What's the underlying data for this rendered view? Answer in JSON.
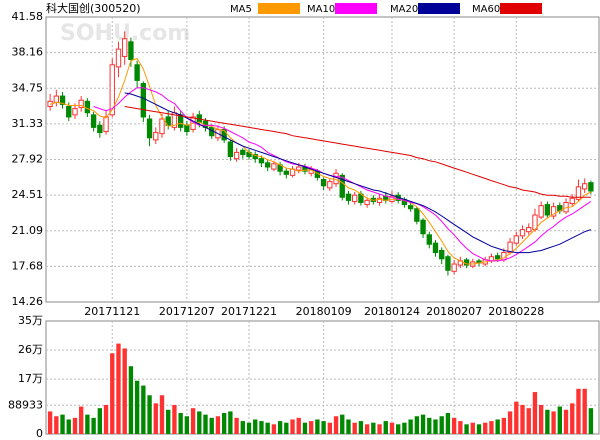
{
  "chart_data": {
    "type": "candlestick",
    "title": "科大国创(300520)",
    "watermark": "SOHU.com",
    "categories": [
      null,
      null,
      null,
      null,
      null,
      null,
      null,
      null,
      null,
      null,
      "20171121",
      null,
      null,
      null,
      null,
      null,
      null,
      null,
      null,
      null,
      null,
      null,
      "20171207",
      null,
      null,
      null,
      null,
      null,
      null,
      null,
      null,
      null,
      "20171221",
      null,
      null,
      null,
      null,
      null,
      null,
      null,
      null,
      null,
      null,
      null,
      "20180109",
      null,
      null,
      null,
      null,
      null,
      null,
      null,
      null,
      null,
      null,
      "20180124",
      null,
      null,
      null,
      null,
      null,
      null,
      null,
      null,
      null,
      "20180207",
      null,
      null,
      null,
      null,
      null,
      null,
      null,
      null,
      null,
      "20180228",
      null,
      null,
      null,
      null,
      null,
      null,
      null,
      null,
      null,
      null,
      null,
      null
    ],
    "open": [
      33.0,
      33.4,
      34.0,
      33.0,
      32.2,
      32.9,
      33.5,
      32.2,
      31.2,
      30.6,
      32.2,
      36.8,
      37.8,
      39.2,
      37.0,
      35.2,
      31.8,
      29.8,
      30.4,
      32.0,
      31.0,
      32.2,
      31.2,
      30.8,
      32.2,
      31.6,
      31.0,
      30.0,
      30.8,
      29.6,
      28.0,
      28.8,
      28.6,
      28.4,
      28.0,
      27.6,
      27.0,
      27.4,
      26.8,
      26.4,
      26.9,
      27.2,
      26.6,
      26.8,
      26.0,
      25.2,
      25.6,
      26.4,
      24.6,
      23.9,
      24.6,
      23.6,
      24.2,
      23.8,
      24.4,
      23.9,
      24.5,
      24.1,
      23.5,
      23.2,
      22.1,
      20.7,
      19.9,
      19.2,
      18.6,
      17.2,
      17.8,
      18.3,
      17.7,
      18.2,
      17.9,
      18.2,
      18.7,
      18.3,
      19.0,
      19.9,
      20.6,
      21.0,
      21.2,
      22.4,
      23.6,
      22.5,
      23.5,
      22.9,
      23.7,
      24.1,
      25.1,
      25.7
    ],
    "high": [
      34.2,
      34.6,
      34.4,
      33.4,
      33.3,
      34.0,
      33.8,
      32.5,
      31.6,
      32.6,
      37.6,
      39.2,
      40.2,
      39.6,
      37.4,
      35.4,
      32.2,
      31.0,
      32.3,
      32.6,
      33.0,
      32.6,
      31.6,
      32.4,
      32.6,
      31.9,
      31.3,
      31.2,
      31.1,
      29.8,
      29.0,
      29.0,
      28.9,
      28.7,
      28.3,
      27.9,
      27.8,
      27.7,
      27.1,
      27.3,
      27.6,
      27.5,
      27.3,
      27.0,
      26.2,
      26.1,
      27.0,
      26.6,
      24.9,
      24.8,
      24.9,
      24.3,
      24.5,
      24.6,
      24.8,
      24.9,
      24.8,
      24.3,
      23.8,
      23.4,
      22.3,
      21.0,
      20.2,
      19.5,
      18.8,
      18.3,
      18.6,
      18.5,
      18.4,
      18.4,
      18.6,
      18.9,
      19.0,
      19.4,
      20.4,
      21.0,
      21.6,
      21.8,
      23.2,
      23.9,
      23.9,
      23.8,
      23.8,
      24.2,
      24.6,
      26.0,
      26.1,
      25.9
    ],
    "low": [
      32.6,
      33.0,
      32.8,
      31.6,
      31.8,
      32.5,
      32.0,
      30.6,
      30.0,
      30.3,
      32.0,
      35.8,
      37.0,
      36.8,
      34.8,
      31.5,
      29.2,
      29.4,
      30.0,
      30.8,
      30.7,
      30.6,
      30.2,
      30.5,
      31.0,
      30.6,
      29.9,
      29.7,
      29.5,
      27.8,
      27.7,
      28.0,
      27.9,
      27.6,
      27.2,
      26.8,
      26.8,
      26.4,
      26.1,
      26.2,
      26.6,
      26.5,
      26.3,
      25.9,
      25.0,
      24.9,
      25.3,
      24.0,
      23.6,
      23.6,
      23.5,
      23.3,
      23.6,
      23.5,
      23.7,
      23.7,
      23.7,
      23.3,
      22.9,
      21.7,
      20.4,
      19.4,
      18.6,
      17.9,
      16.8,
      16.9,
      17.5,
      17.5,
      17.5,
      17.7,
      17.7,
      18.0,
      18.1,
      18.1,
      18.8,
      19.7,
      20.3,
      20.7,
      21.0,
      22.2,
      22.3,
      22.2,
      22.7,
      22.7,
      23.4,
      23.9,
      24.7,
      24.6
    ],
    "close": [
      33.5,
      34.0,
      33.2,
      32.0,
      32.8,
      33.6,
      32.4,
      31.0,
      30.5,
      32.0,
      37.0,
      38.5,
      39.5,
      37.5,
      35.5,
      32.0,
      30.0,
      30.5,
      31.8,
      31.2,
      32.4,
      31.0,
      30.6,
      32.0,
      31.5,
      31.0,
      30.2,
      30.8,
      29.8,
      28.2,
      28.6,
      28.4,
      28.2,
      28.0,
      27.6,
      27.2,
      27.5,
      26.8,
      26.5,
      27.0,
      27.2,
      26.8,
      27.0,
      26.2,
      25.4,
      25.8,
      26.6,
      24.3,
      24.0,
      24.5,
      23.8,
      24.0,
      23.9,
      24.2,
      24.0,
      24.4,
      24.0,
      23.6,
      23.2,
      22.0,
      20.8,
      19.8,
      19.0,
      18.4,
      17.3,
      17.9,
      18.2,
      17.8,
      18.1,
      18.0,
      18.3,
      18.6,
      18.4,
      19.0,
      20.0,
      20.6,
      21.2,
      21.4,
      22.6,
      23.5,
      22.6,
      23.4,
      23.0,
      23.8,
      24.2,
      25.3,
      25.6,
      24.9
    ],
    "volume": [
      70000,
      55000,
      60000,
      45000,
      50000,
      85000,
      60000,
      50000,
      80000,
      90000,
      250000,
      280000,
      265000,
      210000,
      165000,
      150000,
      120000,
      95000,
      120000,
      75000,
      90000,
      65000,
      55000,
      80000,
      70000,
      60000,
      50000,
      55000,
      65000,
      70000,
      50000,
      40000,
      35000,
      45000,
      40000,
      35000,
      30000,
      40000,
      35000,
      45000,
      50000,
      35000,
      40000,
      45000,
      40000,
      35000,
      55000,
      60000,
      45000,
      35000,
      40000,
      30000,
      35000,
      30000,
      40000,
      35000,
      30000,
      35000,
      45000,
      55000,
      60000,
      50000,
      45000,
      55000,
      65000,
      50000,
      40000,
      30000,
      35000,
      30000,
      35000,
      40000,
      45000,
      50000,
      70000,
      100000,
      90000,
      80000,
      130000,
      90000,
      75000,
      70000,
      85000,
      75000,
      95000,
      140000,
      140000,
      80000
    ],
    "up_color": "#ff3232",
    "down_color": "#008800",
    "series": [
      {
        "name": "MA5",
        "color": "#ff9900",
        "values": [
          33.2,
          33.4,
          33.3,
          33.1,
          33.1,
          33.1,
          32.8,
          32.6,
          32.1,
          31.9,
          32.7,
          33.9,
          35.5,
          37.4,
          37.6,
          36.6,
          34.9,
          33.1,
          32.0,
          31.1,
          31.2,
          31.4,
          31.2,
          31.4,
          31.5,
          31.2,
          31.1,
          30.8,
          30.7,
          30.0,
          29.5,
          29.2,
          28.6,
          28.3,
          28.2,
          27.9,
          27.7,
          27.4,
          27.1,
          27.0,
          26.8,
          26.9,
          26.9,
          26.6,
          26.3,
          26.1,
          26.0,
          25.7,
          25.2,
          25.0,
          24.6,
          24.2,
          24.0,
          24.1,
          24.0,
          24.1,
          24.1,
          24.0,
          23.8,
          23.4,
          22.7,
          21.9,
          21.0,
          20.1,
          19.1,
          18.5,
          18.2,
          17.9,
          17.9,
          18.0,
          18.1,
          18.2,
          18.3,
          18.5,
          18.9,
          19.4,
          20.0,
          20.6,
          21.2,
          21.9,
          22.3,
          22.7,
          23.0,
          23.3,
          23.4,
          23.9,
          24.5,
          24.8
        ]
      },
      {
        "name": "MA10",
        "color": "#ff00ff",
        "values": [
          null,
          null,
          null,
          null,
          null,
          null,
          null,
          33.0,
          32.8,
          32.6,
          32.8,
          33.3,
          33.9,
          34.4,
          34.8,
          34.8,
          34.6,
          34.4,
          34.1,
          33.6,
          33.3,
          32.6,
          31.9,
          31.5,
          31.2,
          31.2,
          31.2,
          31.1,
          30.9,
          30.6,
          30.3,
          30.0,
          29.6,
          29.4,
          29.1,
          28.6,
          28.3,
          28.0,
          27.7,
          27.5,
          27.4,
          27.3,
          27.1,
          26.9,
          26.6,
          26.4,
          26.3,
          26.2,
          25.9,
          25.6,
          25.3,
          25.0,
          24.8,
          24.6,
          24.4,
          24.3,
          24.1,
          24.0,
          23.8,
          23.7,
          23.4,
          23.0,
          22.6,
          22.0,
          21.3,
          20.7,
          20.0,
          19.4,
          18.9,
          18.6,
          18.3,
          18.2,
          18.2,
          18.3,
          18.5,
          18.8,
          19.2,
          19.6,
          20.0,
          20.6,
          21.1,
          21.5,
          22.0,
          22.4,
          22.7,
          23.1,
          23.5,
          23.9
        ]
      },
      {
        "name": "MA20",
        "color": "#000099",
        "values": [
          null,
          null,
          null,
          null,
          null,
          null,
          null,
          null,
          null,
          null,
          null,
          null,
          34.3,
          34.2,
          34.0,
          33.8,
          33.5,
          33.2,
          32.9,
          32.6,
          32.4,
          32.2,
          31.9,
          31.6,
          31.3,
          31.0,
          30.7,
          30.4,
          30.1,
          29.8,
          29.5,
          29.2,
          29.0,
          28.8,
          28.6,
          28.4,
          28.2,
          28.0,
          27.8,
          27.6,
          27.4,
          27.2,
          27.0,
          26.8,
          26.6,
          26.4,
          26.2,
          26.0,
          25.8,
          25.6,
          25.4,
          25.2,
          25.0,
          24.9,
          24.7,
          24.5,
          24.3,
          24.1,
          23.9,
          23.7,
          23.5,
          23.2,
          22.9,
          22.5,
          22.1,
          21.7,
          21.3,
          20.9,
          20.5,
          20.2,
          19.9,
          19.6,
          19.4,
          19.2,
          19.1,
          19.0,
          19.0,
          19.0,
          19.1,
          19.2,
          19.4,
          19.6,
          19.8,
          20.1,
          20.4,
          20.7,
          21.0,
          21.2
        ]
      },
      {
        "name": "MA60",
        "color": "#e00000",
        "values": [
          null,
          null,
          null,
          null,
          null,
          null,
          null,
          null,
          null,
          null,
          null,
          null,
          33.0,
          32.9,
          32.8,
          32.7,
          32.6,
          32.5,
          32.4,
          32.3,
          32.2,
          32.1,
          32.0,
          31.9,
          31.8,
          31.7,
          31.6,
          31.5,
          31.4,
          31.3,
          31.2,
          31.1,
          31.0,
          30.9,
          30.8,
          30.7,
          30.6,
          30.5,
          30.4,
          30.2,
          30.1,
          30.0,
          29.9,
          29.8,
          29.7,
          29.6,
          29.5,
          29.4,
          29.3,
          29.2,
          29.1,
          29.0,
          28.9,
          28.8,
          28.7,
          28.6,
          28.5,
          28.4,
          28.3,
          28.1,
          28.0,
          27.8,
          27.7,
          27.5,
          27.3,
          27.1,
          26.9,
          26.7,
          26.5,
          26.3,
          26.1,
          25.9,
          25.7,
          25.5,
          25.3,
          25.2,
          25.0,
          24.9,
          24.8,
          24.6,
          24.5,
          24.5,
          24.4,
          24.4,
          24.3,
          24.3,
          24.3,
          24.3
        ]
      }
    ],
    "ylim": [
      14.26,
      41.58
    ],
    "yticks": [
      14.26,
      17.68,
      21.09,
      24.51,
      27.92,
      31.33,
      34.75,
      38.16,
      41.58
    ],
    "y2lim": [
      0,
      350000
    ],
    "y2ticks": [
      0,
      88933,
      {
        "value": 170000,
        "label": "17万"
      },
      {
        "value": 260000,
        "label": "26万"
      },
      {
        "value": 350000,
        "label": "35万"
      }
    ],
    "grid": true
  }
}
